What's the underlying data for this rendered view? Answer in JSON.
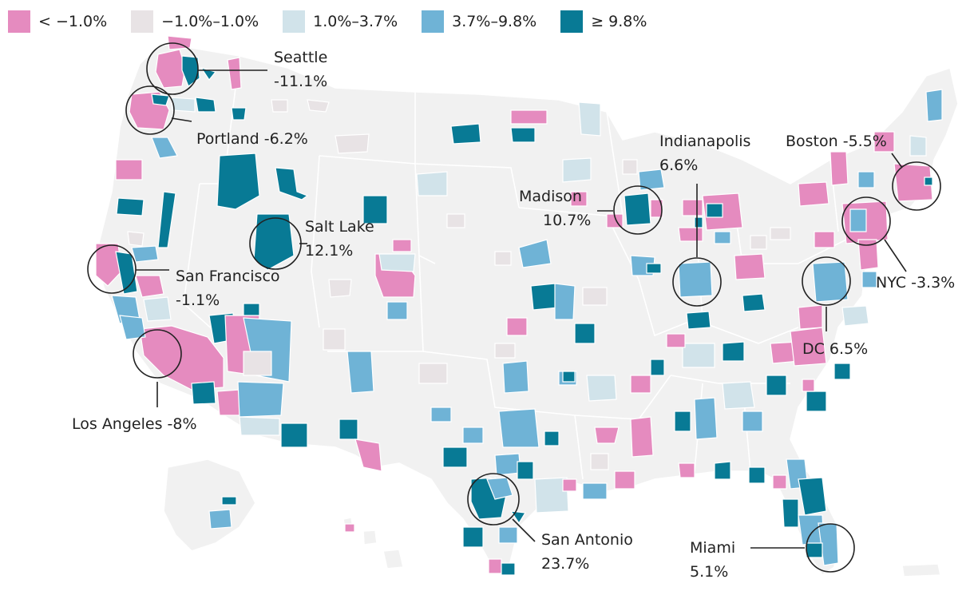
{
  "legend": {
    "items": [
      {
        "label": "< −1.0%",
        "color": "#e58bbf"
      },
      {
        "label": "−1.0%–1.0%",
        "color": "#e8e3e5"
      },
      {
        "label": "1.0%–3.7%",
        "color": "#d1e3ea"
      },
      {
        "label": "3.7%–9.8%",
        "color": "#6fb3d6"
      },
      {
        "label": "≥ 9.8%",
        "color": "#087a95"
      }
    ]
  },
  "colors": {
    "pink": "#e58bbf",
    "gray": "#e8e3e5",
    "lightblue": "#d1e3ea",
    "midblue": "#6fb3d6",
    "teal": "#087a95",
    "land": "#f1f1f1"
  },
  "annotations": [
    {
      "id": "seattle",
      "line1": "Seattle",
      "line2": "-11.1%"
    },
    {
      "id": "portland",
      "line1": "Portland -6.2%",
      "line2": ""
    },
    {
      "id": "sf",
      "line1": "San Francisco",
      "line2": "-1.1%"
    },
    {
      "id": "la",
      "line1": "Los Angeles -8%",
      "line2": ""
    },
    {
      "id": "saltlake",
      "line1": "Salt Lake",
      "line2": "12.1%"
    },
    {
      "id": "madison",
      "line1": "Madison",
      "line2": "10.7%"
    },
    {
      "id": "indianapolis",
      "line1": "Indianapolis",
      "line2": "6.6%"
    },
    {
      "id": "boston",
      "line1": "Boston -5.5%",
      "line2": ""
    },
    {
      "id": "nyc",
      "line1": "NYC -3.3%",
      "line2": ""
    },
    {
      "id": "dc",
      "line1": "DC 6.5%",
      "line2": ""
    },
    {
      "id": "sanantonio",
      "line1": "San Antonio",
      "line2": "23.7%"
    },
    {
      "id": "miami",
      "line1": "Miami",
      "line2": "5.1%"
    }
  ]
}
